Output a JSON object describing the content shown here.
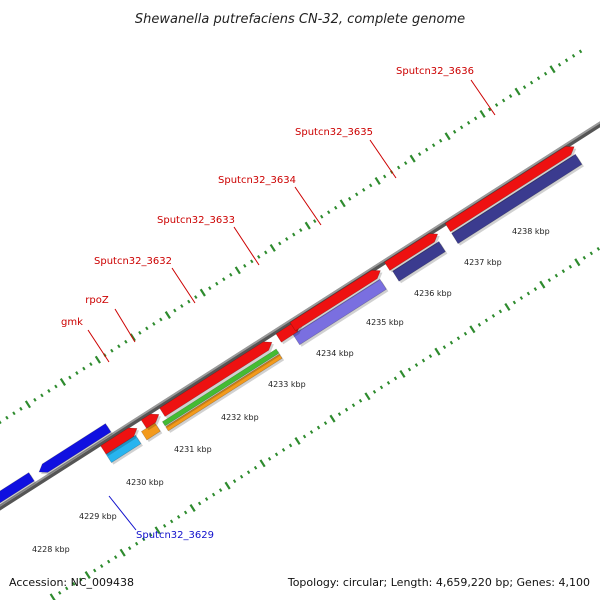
{
  "title": "Shewanella putrefaciens CN-32, complete genome",
  "footer": {
    "accession": "Accession: NC_009438",
    "summary": "Topology: circular; Length: 4,659,220 bp; Genes: 4,100"
  },
  "colors": {
    "backbone": "#7f7f7f",
    "tick": "#2e8b2e",
    "cds_forward_red": "#ee1111",
    "cds_reverse_blue": "#1010e0",
    "gene_slate": "#3b3b8f",
    "gene_lavender": "#7a6fe0",
    "gene_orange": "#f39a1c",
    "gene_green": "#44bb33",
    "gene_cyan": "#28b4ef",
    "label_red": "#cc0000",
    "label_blue": "#1111cc"
  },
  "scale_labels": [
    "4228 kbp",
    "4229 kbp",
    "4230 kbp",
    "4231 kbp",
    "4232 kbp",
    "4233 kbp",
    "4234 kbp",
    "4235 kbp",
    "4236 kbp",
    "4237 kbp",
    "4238 kbp"
  ],
  "gene_labels": [
    {
      "name": "gmk",
      "strand": "forward"
    },
    {
      "name": "rpoZ",
      "strand": "forward"
    },
    {
      "name": "Sputcn32_3632",
      "strand": "forward"
    },
    {
      "name": "Sputcn32_3633",
      "strand": "forward"
    },
    {
      "name": "Sputcn32_3634",
      "strand": "forward"
    },
    {
      "name": "Sputcn32_3635",
      "strand": "forward"
    },
    {
      "name": "Sputcn32_3636",
      "strand": "forward"
    },
    {
      "name": "Sputcn32_3629",
      "strand": "reverse"
    }
  ]
}
